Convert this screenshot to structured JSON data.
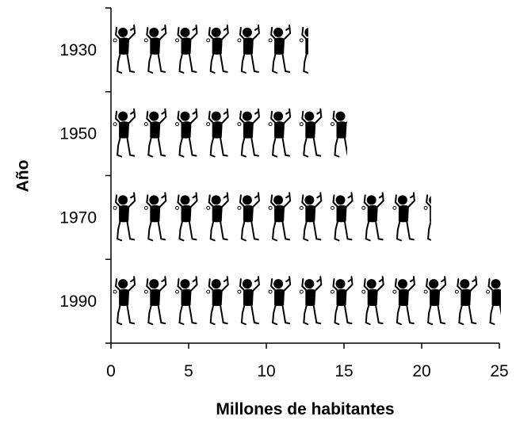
{
  "chart_data": {
    "type": "bar",
    "orientation": "horizontal",
    "y_label": "Año",
    "x_label": "Millones de habitantes",
    "categories": [
      "1930",
      "1950",
      "1970",
      "1990"
    ],
    "values": [
      12.7,
      15.2,
      20.6,
      25.1
    ],
    "color": "#000000",
    "xlim": [
      0,
      25
    ],
    "xticks": [
      0,
      5,
      10,
      15,
      20,
      25
    ]
  }
}
